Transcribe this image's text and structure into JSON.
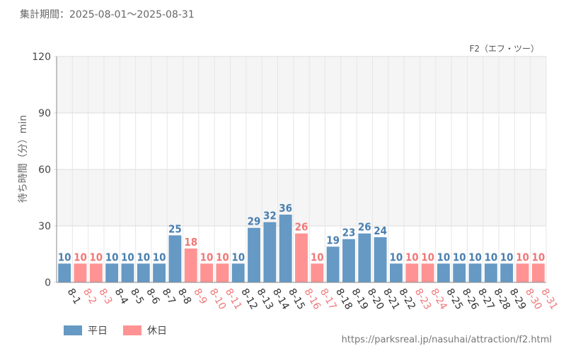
{
  "header": {
    "period": "集計期間：2025-08-01～2025-08-31",
    "attraction": "F2（エフ・ツー）"
  },
  "footer": {
    "url": "https://parksreal.jp/nasuhai/attraction/f2.html"
  },
  "legend": {
    "weekday_label": "平日",
    "holiday_label": "休日"
  },
  "colors": {
    "weekday": "#6699c4",
    "holiday": "#ff9393",
    "weekday_text": "#4a7fb0",
    "holiday_text": "#f07878"
  },
  "chart_data": {
    "type": "bar",
    "title": "",
    "xlabel": "",
    "ylabel": "待ち時間（分）min",
    "ylim": [
      0,
      120
    ],
    "yticks": [
      0,
      30,
      60,
      90,
      120
    ],
    "grid": true,
    "legend_position": "bottom-left",
    "categories": [
      "8-1",
      "8-2",
      "8-3",
      "8-4",
      "8-5",
      "8-6",
      "8-7",
      "8-8",
      "8-9",
      "8-10",
      "8-11",
      "8-12",
      "8-13",
      "8-14",
      "8-15",
      "8-16",
      "8-17",
      "8-18",
      "8-19",
      "8-20",
      "8-21",
      "8-22",
      "8-23",
      "8-24",
      "8-25",
      "8-26",
      "8-27",
      "8-28",
      "8-29",
      "8-30",
      "8-31"
    ],
    "values": [
      10,
      10,
      10,
      10,
      10,
      10,
      10,
      25,
      18,
      10,
      10,
      10,
      29,
      32,
      36,
      26,
      10,
      19,
      23,
      26,
      24,
      10,
      10,
      10,
      10,
      10,
      10,
      10,
      10,
      10,
      10
    ],
    "day_type": [
      "平日",
      "休日",
      "休日",
      "平日",
      "平日",
      "平日",
      "平日",
      "平日",
      "休日",
      "休日",
      "休日",
      "平日",
      "平日",
      "平日",
      "平日",
      "休日",
      "休日",
      "平日",
      "平日",
      "平日",
      "平日",
      "平日",
      "休日",
      "休日",
      "平日",
      "平日",
      "平日",
      "平日",
      "平日",
      "休日",
      "休日"
    ]
  }
}
